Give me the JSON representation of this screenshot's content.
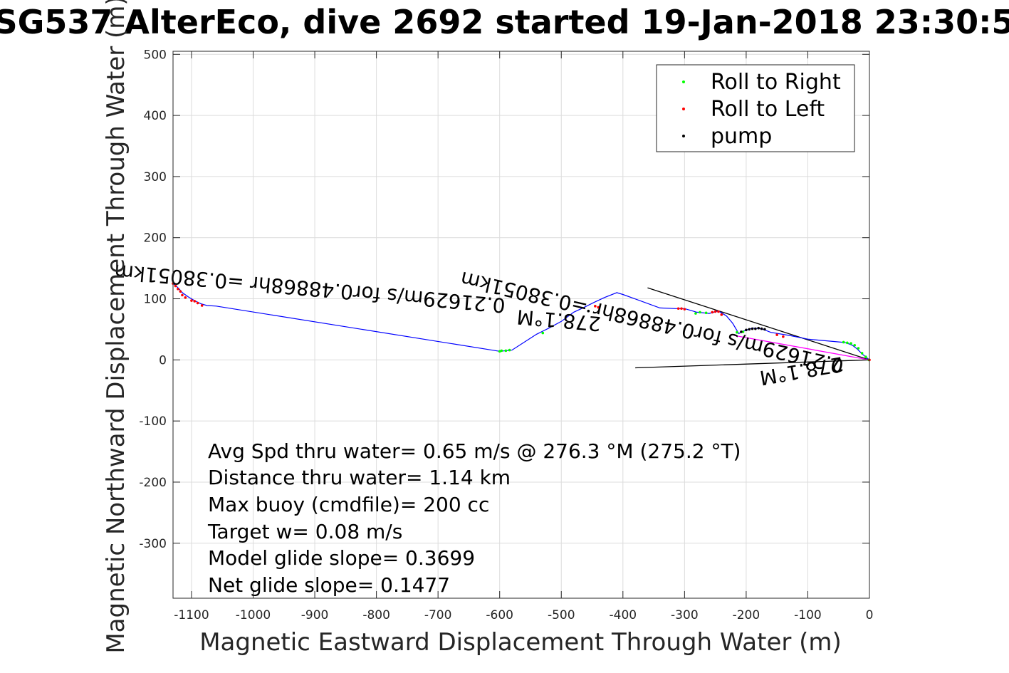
{
  "chart_data": {
    "type": "line",
    "title": "SG537 AlterEco, dive 2692 started 19-Jan-2018 23:30:5",
    "xlabel": "Magnetic Eastward Displacement Through Water (m)",
    "ylabel": "Magnetic Northward Displacement Through Water (m)",
    "xlim": [
      -1130,
      0
    ],
    "ylim": [
      -390,
      505
    ],
    "grid": true,
    "x_ticks": [
      -1100,
      -1000,
      -900,
      -800,
      -700,
      -600,
      -500,
      -400,
      -300,
      -200,
      -100,
      0
    ],
    "y_ticks": [
      500,
      400,
      300,
      200,
      100,
      0,
      -100,
      -200,
      -300
    ],
    "x_tick_labels": [
      "-1100",
      "-1000",
      "-900",
      "-800",
      "-700",
      "-600",
      "-500",
      "-400",
      "-300",
      "-200",
      "-100",
      "0"
    ],
    "y_tick_labels": [
      "500",
      "400",
      "300",
      "200",
      "100",
      "0",
      "-100",
      "-200",
      "-300"
    ],
    "legend": {
      "position": "top-right",
      "entries": [
        {
          "label": "Roll to Right",
          "color": "#00ff00"
        },
        {
          "label": "Roll to Left",
          "color": "#ff0000"
        },
        {
          "label": "pump",
          "color": "#000000"
        }
      ]
    },
    "track": {
      "name": "glider track",
      "color": "#0000ff",
      "x": [
        0,
        -5,
        -12,
        -20,
        -28,
        -38,
        -45,
        -100,
        -130,
        -160,
        -175,
        -190,
        -205,
        -212,
        -222,
        -232,
        -245,
        -260,
        -280,
        -300,
        -315,
        -340,
        -400,
        -410,
        -430,
        -445,
        -465,
        -480,
        -500,
        -520,
        -540,
        -580,
        -600,
        -1060,
        -1075,
        -1085,
        -1095,
        -1105,
        -1115,
        -1120,
        -1125,
        -1130
      ],
      "y": [
        0,
        4,
        10,
        18,
        24,
        28,
        29,
        34,
        40,
        45,
        51,
        52,
        47,
        43,
        60,
        72,
        80,
        76,
        78,
        84,
        84,
        85,
        107,
        110,
        102,
        95,
        85,
        78,
        63,
        52,
        42,
        16,
        14,
        88,
        89,
        92,
        97,
        103,
        110,
        116,
        121,
        125
      ]
    },
    "roll_right_points": {
      "x": [
        -1,
        -6,
        -12,
        -18,
        -24,
        -30,
        -36,
        -42,
        -205,
        -215,
        -265,
        -275,
        -282,
        -530,
        -584,
        -590,
        -597,
        -600
      ],
      "y": [
        0,
        5,
        11,
        19,
        24,
        27,
        28,
        29,
        46,
        45,
        77,
        78,
        76,
        44,
        16,
        15,
        15,
        14
      ]
    },
    "roll_left_points": {
      "x": [
        0,
        -140,
        -150,
        -240,
        -245,
        -250,
        -255,
        -300,
        -305,
        -310,
        -440,
        -445,
        -1083,
        -1090,
        -1095,
        -1100,
        -1110,
        -1115,
        -1118,
        -1122,
        -1126,
        -1130
      ],
      "y": [
        0,
        38,
        41,
        74,
        79,
        79,
        78,
        83,
        84,
        84,
        86,
        88,
        89,
        93,
        96,
        97,
        102,
        106,
        112,
        116,
        121,
        125
      ]
    },
    "pump_points": {
      "x": [
        -170,
        -175,
        -180,
        -185,
        -190,
        -195,
        -200,
        -208,
        -456
      ],
      "y": [
        50,
        51,
        52,
        51,
        51,
        50,
        49,
        46,
        80
      ]
    },
    "reference_lines": [
      {
        "name": "heading-line-1",
        "x": [
          0,
          -360
        ],
        "y": [
          0,
          118
        ],
        "color": "#000000"
      },
      {
        "name": "heading-line-2",
        "x": [
          0,
          -380
        ],
        "y": [
          0,
          -13
        ],
        "color": "#000000"
      },
      {
        "name": "current-line",
        "x": [
          0,
          -220
        ],
        "y": [
          0,
          40
        ],
        "color": "#ff00ff"
      }
    ],
    "annotations": [
      "Avg Spd thru water=  0.65 m/s @ 276.3 °M (275.2 °T)",
      "Distance thru water=  1.14 km",
      "Max buoy (cmdfile)= 200 cc",
      "Target w= 0.08 m/s",
      "Model glide slope= 0.3699",
      "Net glide slope= 0.1477"
    ],
    "rotated_labels": [
      {
        "text": "0.21629m/s for0.48868hr =0.38051km",
        "anchor_x": -590,
        "anchor_y": 100,
        "angle": 185
      },
      {
        "text": "278.1°M",
        "anchor_x": -435,
        "anchor_y": 70,
        "angle": 185
      },
      {
        "text": "278.1°M",
        "anchor_x": -45,
        "anchor_y": 5,
        "angle": 170
      },
      {
        "text": "0.21629m/s for0.48868hr =0.38051km",
        "anchor_x": -40,
        "anchor_y": 0,
        "angle": 193
      }
    ]
  }
}
